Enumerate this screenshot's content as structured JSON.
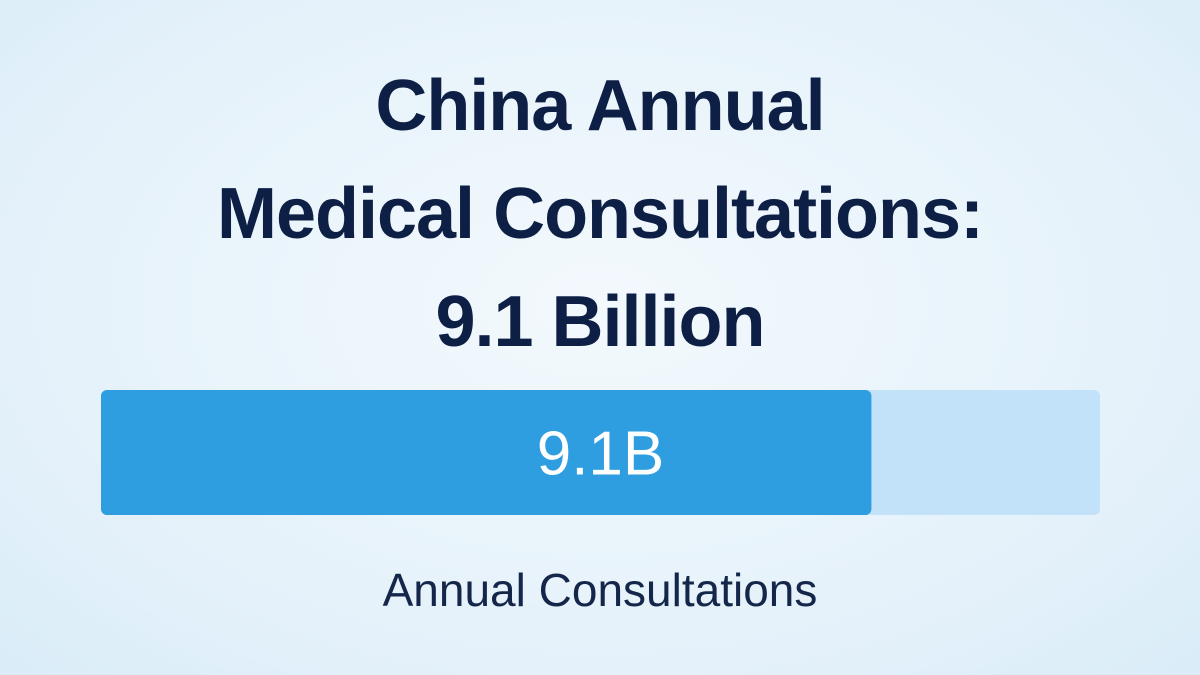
{
  "chart_data": {
    "type": "progress-bar",
    "title": "China Annual\nMedical Consultations:\n9.1 Billion",
    "categories": [
      "Annual Consultations"
    ],
    "values": [
      9.1
    ],
    "value_labels": [
      "9.1B"
    ],
    "color": "#2e9ee0",
    "track_color": "#c2e2f9",
    "xlim": [
      0,
      11.8
    ]
  }
}
